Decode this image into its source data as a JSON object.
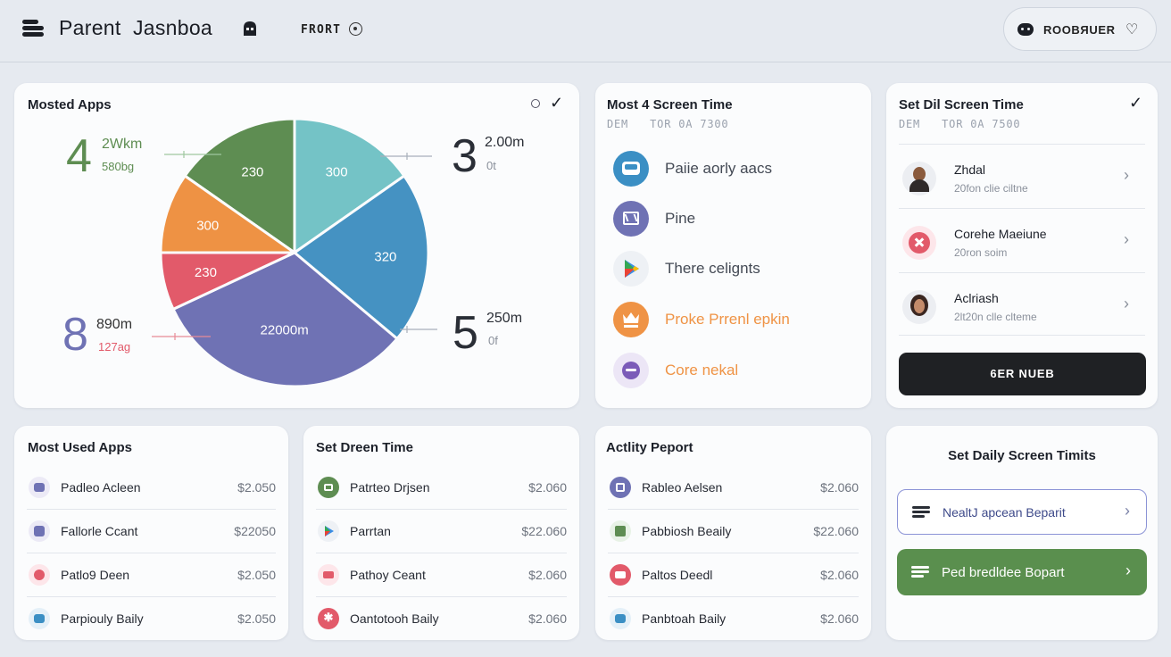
{
  "header": {
    "title": "Parent  Jasnboa",
    "nav_item": "FRORT",
    "user_name": "ROOBЯUER"
  },
  "pie_card": {
    "title": "Mosted Apps",
    "slices": [
      {
        "label": "230",
        "color": "#5e8d52"
      },
      {
        "label": "300",
        "color": "#74c3c6"
      },
      {
        "label": "320",
        "color": "#4592c2"
      },
      {
        "label": "22000m",
        "color": "#6f72b4"
      },
      {
        "label": "230",
        "color": "#e25a6a"
      },
      {
        "label": "300",
        "color": "#ee9244"
      }
    ],
    "callouts": [
      {
        "num": "4",
        "val": "2Wkm",
        "sub": "580bg",
        "num_color": "#5e8d52",
        "val_color": "#5e8d52",
        "sub_color": "#5e8d52"
      },
      {
        "num": "3",
        "val": "2.00m",
        "sub": "0t",
        "num_color": "#2a2e36",
        "val_color": "#2a2e36",
        "sub_color": "#8a909b"
      },
      {
        "num": "8",
        "val": "890m",
        "sub": "127ag",
        "num_color": "#6f72b4",
        "val_color": "#333",
        "sub_color": "#e25a6a"
      },
      {
        "num": "5",
        "val": "250m",
        "sub": "0f",
        "num_color": "#2a2e36",
        "val_color": "#2a2e36",
        "sub_color": "#8a909b"
      }
    ]
  },
  "screen_time_card": {
    "title": "Most 4 Screen Time",
    "subtitle": "DEM   TOR 0A 7300",
    "items": [
      {
        "label": "Paiie aorly aacs",
        "color": "#3b8fc4",
        "label_color": "#444a55"
      },
      {
        "label": "Pine",
        "color": "#6f72b4",
        "label_color": "#444a55"
      },
      {
        "label": "There celignts",
        "color": "#eef1f5",
        "label_color": "#444a55"
      },
      {
        "label": "Proke Prrenl epkin",
        "color": "#ef9345",
        "label_color": "#ef9345"
      },
      {
        "label": "Core nekal",
        "color": "#ece6f6",
        "label_color": "#ef9345"
      }
    ]
  },
  "daily_card": {
    "title": "Set Dil Screen Time",
    "subtitle": "DEM   TOR 0A 7500",
    "people": [
      {
        "name": "Zhdal",
        "sub": "20fon clie ciltne"
      },
      {
        "name": "Corehe Maeiune",
        "sub": "20ron soim"
      },
      {
        "name": "Aclriash",
        "sub": "2lt20n clle clteme"
      }
    ],
    "button_label": "6ER NUEB"
  },
  "most_used_card": {
    "title": "Most Used Apps",
    "rows": [
      {
        "label": "Padleo Acleen",
        "value": "$2.050"
      },
      {
        "label": "Fallorle Ccant",
        "value": "$22050"
      },
      {
        "label": "Patlo9 Deen",
        "value": "$2.050"
      },
      {
        "label": "Parpiouly Baily",
        "value": "$2.050"
      }
    ]
  },
  "dreen_card": {
    "title": "Set Dreen Time",
    "rows": [
      {
        "label": "Patrteo Drjsen",
        "value": "$2.060"
      },
      {
        "label": "Parrtan",
        "value": "$22.060"
      },
      {
        "label": "Pathoy Ceant",
        "value": "$2.060"
      },
      {
        "label": "Oantotooh Baily",
        "value": "$2.060"
      }
    ]
  },
  "activity_card": {
    "title": "Actlity Peport",
    "rows": [
      {
        "label": "Rableo Aelsen",
        "value": "$2.060"
      },
      {
        "label": "Pabbiosh Beaily",
        "value": "$22.060"
      },
      {
        "label": "Paltos Deedl",
        "value": "$2.060"
      },
      {
        "label": "Panbtoah Baily",
        "value": "$2.060"
      }
    ]
  },
  "limits_card": {
    "title": "Set Daily Screen Timits",
    "outline_button": "NealtJ apcean Beparit",
    "green_button": "Ped bredldee Bopart"
  }
}
